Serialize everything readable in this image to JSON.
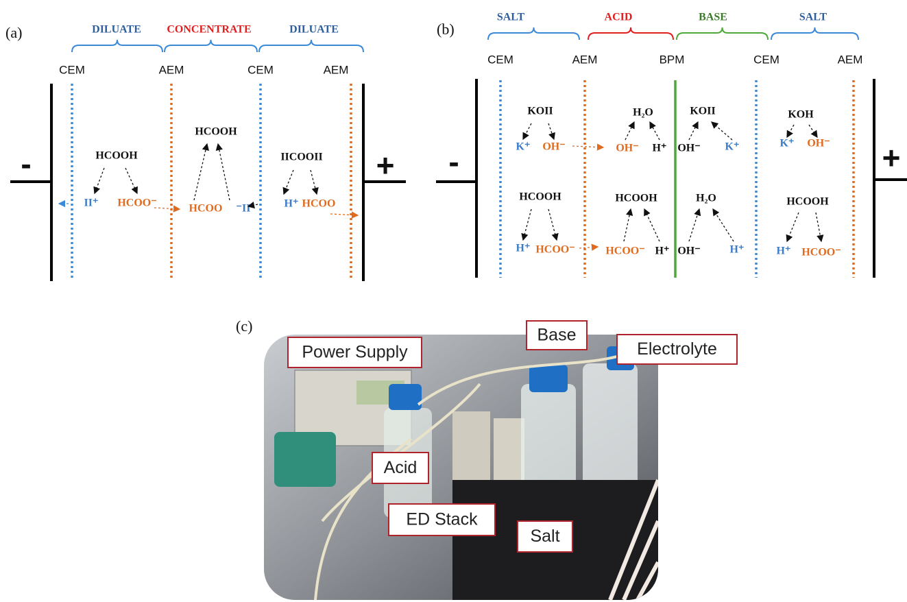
{
  "panel_a": {
    "label": "(a)",
    "compartments": [
      "DILUATE",
      "CONCENTRATE",
      "DILUATE"
    ],
    "membranes": [
      "CEM",
      "AEM",
      "CEM",
      "AEM"
    ],
    "electrodes": [
      "-",
      "+"
    ],
    "species": [
      "HCOOH",
      "II⁺",
      "HCOO⁻",
      "HCOOH",
      "HCOO",
      "⁻II",
      "IICOOII",
      "H⁺",
      "HCOO"
    ]
  },
  "panel_b": {
    "label": "(b)",
    "compartments": [
      "SALT",
      "ACID",
      "BASE",
      "SALT"
    ],
    "membranes": [
      "CEM",
      "AEM",
      "BPM",
      "CEM",
      "AEM"
    ],
    "electrodes": [
      "-",
      "+"
    ],
    "species": [
      "KOII",
      "K⁺",
      "OH⁻",
      "H₂O",
      "OH⁻",
      "H⁺",
      "KOII",
      "OH⁻",
      "K⁺",
      "KOH",
      "K⁺",
      "OH⁻",
      "HCOOH",
      "H⁺",
      "HCOO⁻",
      "HCOOH",
      "HCOO⁻",
      "H⁺",
      "H₂O",
      "OH⁻",
      "H⁺",
      "HCOOH",
      "H⁺",
      "HCOO⁻"
    ]
  },
  "panel_c": {
    "label": "(c)",
    "callouts": [
      "Power Supply",
      "Base",
      "Electrolyte",
      "Acid",
      "ED Stack",
      "Salt"
    ]
  }
}
